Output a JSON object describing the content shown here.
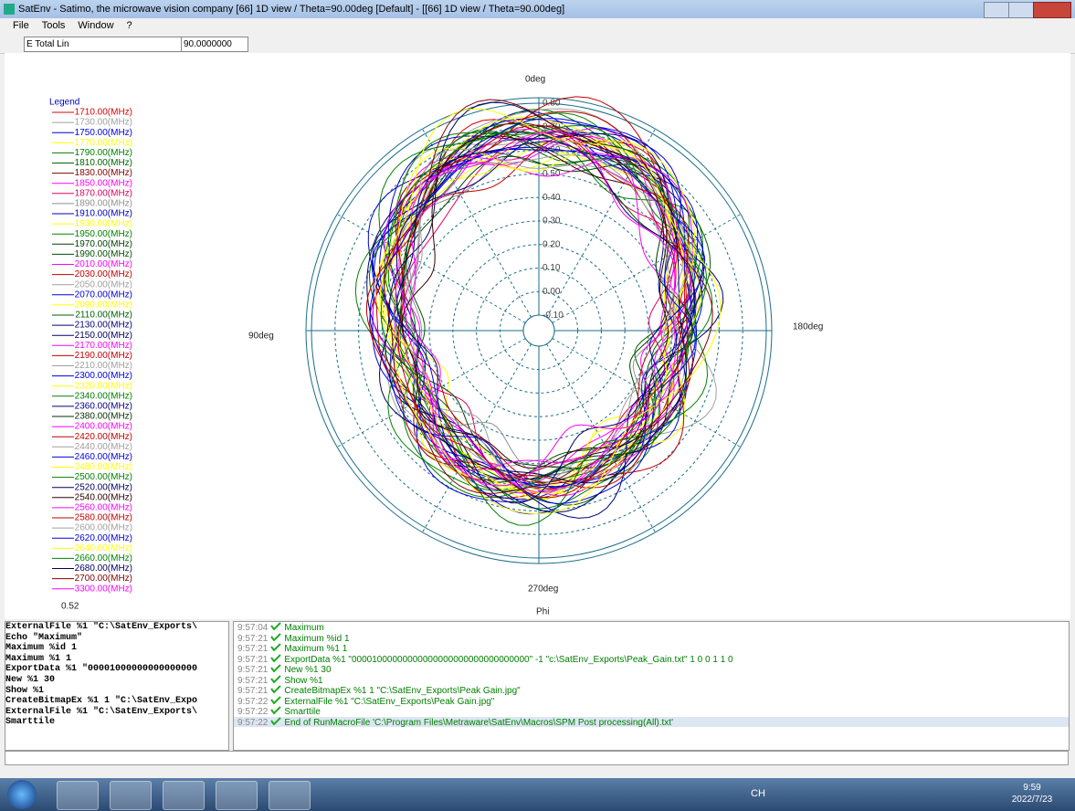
{
  "window": {
    "title": "SatEnv - Satimo, the microwave vision company [66] 1D view / Theta=90.00deg [Default] - [[66] 1D view / Theta=90.00deg]"
  },
  "menu": [
    "File",
    "Tools",
    "Window",
    "?"
  ],
  "toolbar": {
    "component": "E Total Lin",
    "theta": "90.0000000"
  },
  "plot": {
    "legend_title": "Legend",
    "legend": [
      {
        "name": "1710.00(MHz)",
        "color": "#e00000"
      },
      {
        "name": "1730.00(MHz)",
        "color": "#a0a0a0"
      },
      {
        "name": "1750.00(MHz)",
        "color": "#0000e0"
      },
      {
        "name": "1770.00(MHz)",
        "color": "#ffff00"
      },
      {
        "name": "1790.00(MHz)",
        "color": "#008000"
      },
      {
        "name": "1810.00(MHz)",
        "color": "#006400"
      },
      {
        "name": "1830.00(MHz)",
        "color": "#800000"
      },
      {
        "name": "1850.00(MHz)",
        "color": "#ff00ff"
      },
      {
        "name": "1870.00(MHz)",
        "color": "#e00060"
      },
      {
        "name": "1890.00(MHz)",
        "color": "#909090"
      },
      {
        "name": "1910.00(MHz)",
        "color": "#0000c0"
      },
      {
        "name": "1930.00(MHz)",
        "color": "#ffff00"
      },
      {
        "name": "1950.00(MHz)",
        "color": "#008000"
      },
      {
        "name": "1970.00(MHz)",
        "color": "#004000"
      },
      {
        "name": "1990.00(MHz)",
        "color": "#005000"
      },
      {
        "name": "2010.00(MHz)",
        "color": "#ff00ff"
      },
      {
        "name": "2030.00(MHz)",
        "color": "#c00000"
      },
      {
        "name": "2050.00(MHz)",
        "color": "#a0a0a0"
      },
      {
        "name": "2070.00(MHz)",
        "color": "#0000e0"
      },
      {
        "name": "2090.00(MHz)",
        "color": "#ffff00"
      },
      {
        "name": "2110.00(MHz)",
        "color": "#006000"
      },
      {
        "name": "2130.00(MHz)",
        "color": "#000080"
      },
      {
        "name": "2150.00(MHz)",
        "color": "#000060"
      },
      {
        "name": "2170.00(MHz)",
        "color": "#ff00ff"
      },
      {
        "name": "2190.00(MHz)",
        "color": "#c00000"
      },
      {
        "name": "2210.00(MHz)",
        "color": "#a0a0a0"
      },
      {
        "name": "2300.00(MHz)",
        "color": "#0000e0"
      },
      {
        "name": "2320.00(MHz)",
        "color": "#ffff00"
      },
      {
        "name": "2340.00(MHz)",
        "color": "#008000"
      },
      {
        "name": "2360.00(MHz)",
        "color": "#000080"
      },
      {
        "name": "2380.00(MHz)",
        "color": "#003000"
      },
      {
        "name": "2400.00(MHz)",
        "color": "#ff00ff"
      },
      {
        "name": "2420.00(MHz)",
        "color": "#c00000"
      },
      {
        "name": "2440.00(MHz)",
        "color": "#a0a0a0"
      },
      {
        "name": "2460.00(MHz)",
        "color": "#0000e0"
      },
      {
        "name": "2480.00(MHz)",
        "color": "#ffff00"
      },
      {
        "name": "2500.00(MHz)",
        "color": "#008000"
      },
      {
        "name": "2520.00(MHz)",
        "color": "#000060"
      },
      {
        "name": "2540.00(MHz)",
        "color": "#300000"
      },
      {
        "name": "2560.00(MHz)",
        "color": "#ff00ff"
      },
      {
        "name": "2580.00(MHz)",
        "color": "#c00000"
      },
      {
        "name": "2600.00(MHz)",
        "color": "#a0a0a0"
      },
      {
        "name": "2620.00(MHz)",
        "color": "#0000e0"
      },
      {
        "name": "2640.00(MHz)",
        "color": "#ffff00"
      },
      {
        "name": "2660.00(MHz)",
        "color": "#008000"
      },
      {
        "name": "2680.00(MHz)",
        "color": "#000060"
      },
      {
        "name": "2700.00(MHz)",
        "color": "#800000"
      },
      {
        "name": "3300.00(MHz)",
        "color": "#ff00ff"
      }
    ],
    "angle_labels": [
      "0deg",
      "90deg",
      "180deg",
      "270deg"
    ],
    "radial_labels": [
      "0.80",
      "0.70",
      "0.60",
      "0.50",
      "0.40",
      "0.30",
      "0.20",
      "0.10",
      "0.00",
      "-0.10"
    ],
    "corner_value": "0.52",
    "x_label": "Phi"
  },
  "script_panel": [
    "ExternalFile %1 \"C:\\SatEnv_Exports\\",
    "Echo \"Maximum\"",
    "Maximum %id 1",
    "Maximum %1 1",
    "ExportData %1 \"00001000000000000000",
    "New %1 30",
    "Show %1",
    "CreateBitmapEx %1 1 \"C:\\SatEnv_Expo",
    "ExternalFile %1 \"C:\\SatEnv_Exports\\",
    "Smarttile"
  ],
  "log_panel": [
    {
      "time": "9:57:04",
      "text": "Maximum"
    },
    {
      "time": "9:57:21",
      "text": "Maximum %id 1"
    },
    {
      "time": "9:57:21",
      "text": "Maximum %1 1"
    },
    {
      "time": "9:57:21",
      "text": "ExportData %1 \"00001000000000000000000000000000000\" -1 \"c:\\SatEnv_Exports\\Peak_Gain.txt\" 1 0 0 1 1 0"
    },
    {
      "time": "9:57:21",
      "text": "New %1 30"
    },
    {
      "time": "9:57:21",
      "text": "Show %1"
    },
    {
      "time": "9:57:21",
      "text": "CreateBitmapEx %1 1 \"C:\\SatEnv_Exports\\Peak Gain.jpg\""
    },
    {
      "time": "9:57:22",
      "text": "ExternalFile %1 \"C:\\SatEnv_Exports\\Peak Gain.jpg\""
    },
    {
      "time": "9:57:22",
      "text": "Smarttile"
    },
    {
      "time": "9:57:22",
      "text": "End of RunMacroFile 'C:\\Program Files\\Metraware\\SatEnv\\Macros\\SPM Post processing(All).txt'"
    }
  ],
  "taskbar": {
    "lang": "CH",
    "time": "9:59",
    "date": "2022/7/23"
  }
}
